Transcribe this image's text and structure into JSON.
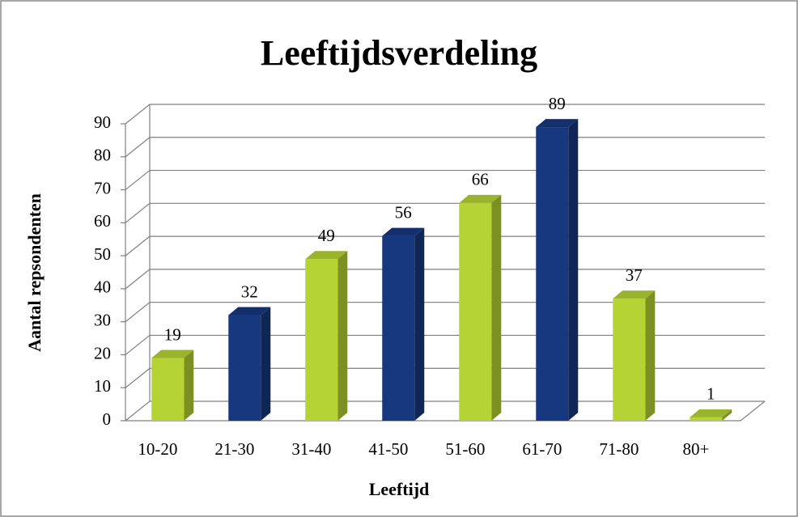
{
  "chart_data": {
    "type": "bar3d",
    "title": "Leeftijdsverdeling",
    "x_label": "Leeftijd",
    "y_label": "Aantal repsondenten",
    "categories": [
      "10-20",
      "21-30",
      "31-40",
      "41-50",
      "51-60",
      "61-70",
      "71-80",
      "80+"
    ],
    "values": [
      19,
      32,
      49,
      56,
      66,
      89,
      37,
      1
    ],
    "colors": [
      "#b5d334",
      "#17387f",
      "#b5d334",
      "#17387f",
      "#b5d334",
      "#17387f",
      "#b5d334",
      "#b5d334"
    ],
    "ylim": [
      0,
      90
    ],
    "yticks": [
      0,
      10,
      20,
      30,
      40,
      50,
      60,
      70,
      80,
      90
    ],
    "grid": true
  }
}
